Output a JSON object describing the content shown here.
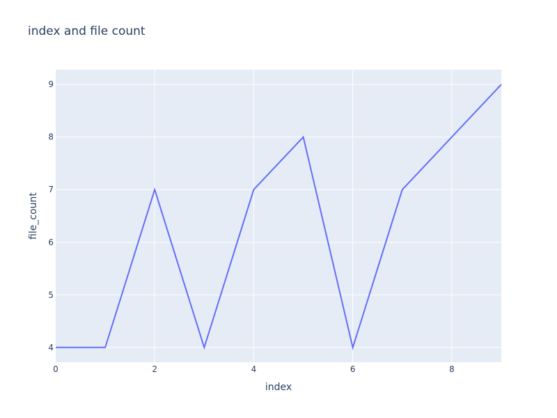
{
  "chart_data": {
    "type": "line",
    "title": "index and file count",
    "xlabel": "index",
    "ylabel": "file_count",
    "x": [
      0,
      1,
      2,
      3,
      4,
      5,
      6,
      7,
      8,
      9
    ],
    "series": [
      {
        "values": [
          4,
          4,
          7,
          4,
          7,
          8,
          4,
          7,
          8,
          9
        ]
      }
    ],
    "xlim": [
      0,
      9
    ],
    "ylim": [
      3.72,
      9.28
    ],
    "xticks": [
      0,
      2,
      4,
      6,
      8
    ],
    "yticks": [
      4,
      5,
      6,
      7,
      8,
      9
    ],
    "grid": true,
    "colors": {
      "line": "#636efa",
      "plot_bg": "#e5ecf6",
      "grid": "#ffffff",
      "text": "#2a3f5f"
    }
  }
}
